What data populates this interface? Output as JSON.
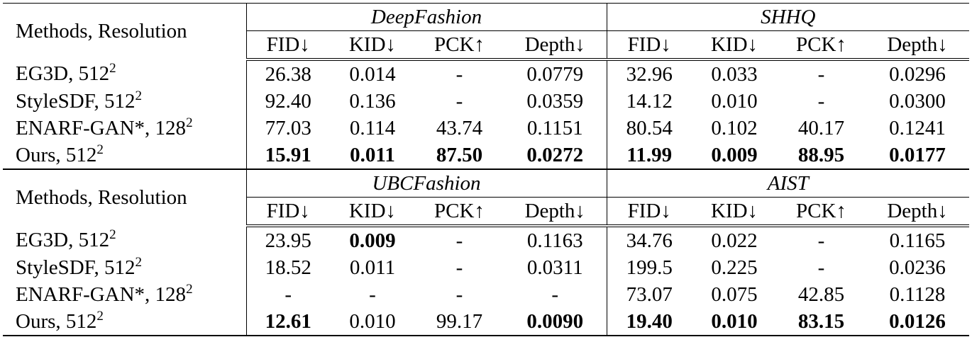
{
  "blocks": [
    {
      "header": {
        "methods": "Methods, Resolution",
        "groups": [
          {
            "name": "DeepFashion",
            "metrics": [
              "FID↓",
              "KID↓",
              "PCK↑",
              "Depth↓"
            ]
          },
          {
            "name": "SHHQ",
            "metrics": [
              "FID↓",
              "KID↓",
              "PCK↑",
              "Depth↓"
            ]
          }
        ]
      },
      "rows": [
        {
          "method": "EG3D, 512",
          "sup": "2",
          "cells": [
            "26.38",
            "0.014",
            "-",
            "0.0779",
            "32.96",
            "0.033",
            "-",
            "0.0296"
          ],
          "bold": []
        },
        {
          "method": "StyleSDF, 512",
          "sup": "2",
          "cells": [
            "92.40",
            "0.136",
            "-",
            "0.0359",
            "14.12",
            "0.010",
            "-",
            "0.0300"
          ],
          "bold": []
        },
        {
          "method": "ENARF-GAN*, 128",
          "sup": "2",
          "cells": [
            "77.03",
            "0.114",
            "43.74",
            "0.1151",
            "80.54",
            "0.102",
            "40.17",
            "0.1241"
          ],
          "bold": []
        },
        {
          "method": "Ours, 512",
          "sup": "2",
          "cells": [
            "15.91",
            "0.011",
            "87.50",
            "0.0272",
            "11.99",
            "0.009",
            "88.95",
            "0.0177"
          ],
          "bold": [
            0,
            1,
            2,
            3,
            4,
            5,
            6,
            7
          ]
        }
      ]
    },
    {
      "header": {
        "methods": "Methods, Resolution",
        "groups": [
          {
            "name": "UBCFashion",
            "metrics": [
              "FID↓",
              "KID↓",
              "PCK↑",
              "Depth↓"
            ]
          },
          {
            "name": "AIST",
            "metrics": [
              "FID↓",
              "KID↓",
              "PCK↑",
              "Depth↓"
            ]
          }
        ]
      },
      "rows": [
        {
          "method": "EG3D, 512",
          "sup": "2",
          "cells": [
            "23.95",
            "0.009",
            "-",
            "0.1163",
            "34.76",
            "0.022",
            "-",
            "0.1165"
          ],
          "bold": [
            1
          ]
        },
        {
          "method": "StyleSDF, 512",
          "sup": "2",
          "cells": [
            "18.52",
            "0.011",
            "-",
            "0.0311",
            "199.5",
            "0.225",
            "-",
            "0.0236"
          ],
          "bold": []
        },
        {
          "method": "ENARF-GAN*, 128",
          "sup": "2",
          "cells": [
            "-",
            "-",
            "-",
            "-",
            "73.07",
            "0.075",
            "42.85",
            "0.1128"
          ],
          "bold": []
        },
        {
          "method": "Ours, 512",
          "sup": "2",
          "cells": [
            "12.61",
            "0.010",
            "99.17",
            "0.0090",
            "19.40",
            "0.010",
            "83.15",
            "0.0126"
          ],
          "bold": [
            0,
            3,
            4,
            5,
            6,
            7
          ]
        }
      ]
    }
  ]
}
